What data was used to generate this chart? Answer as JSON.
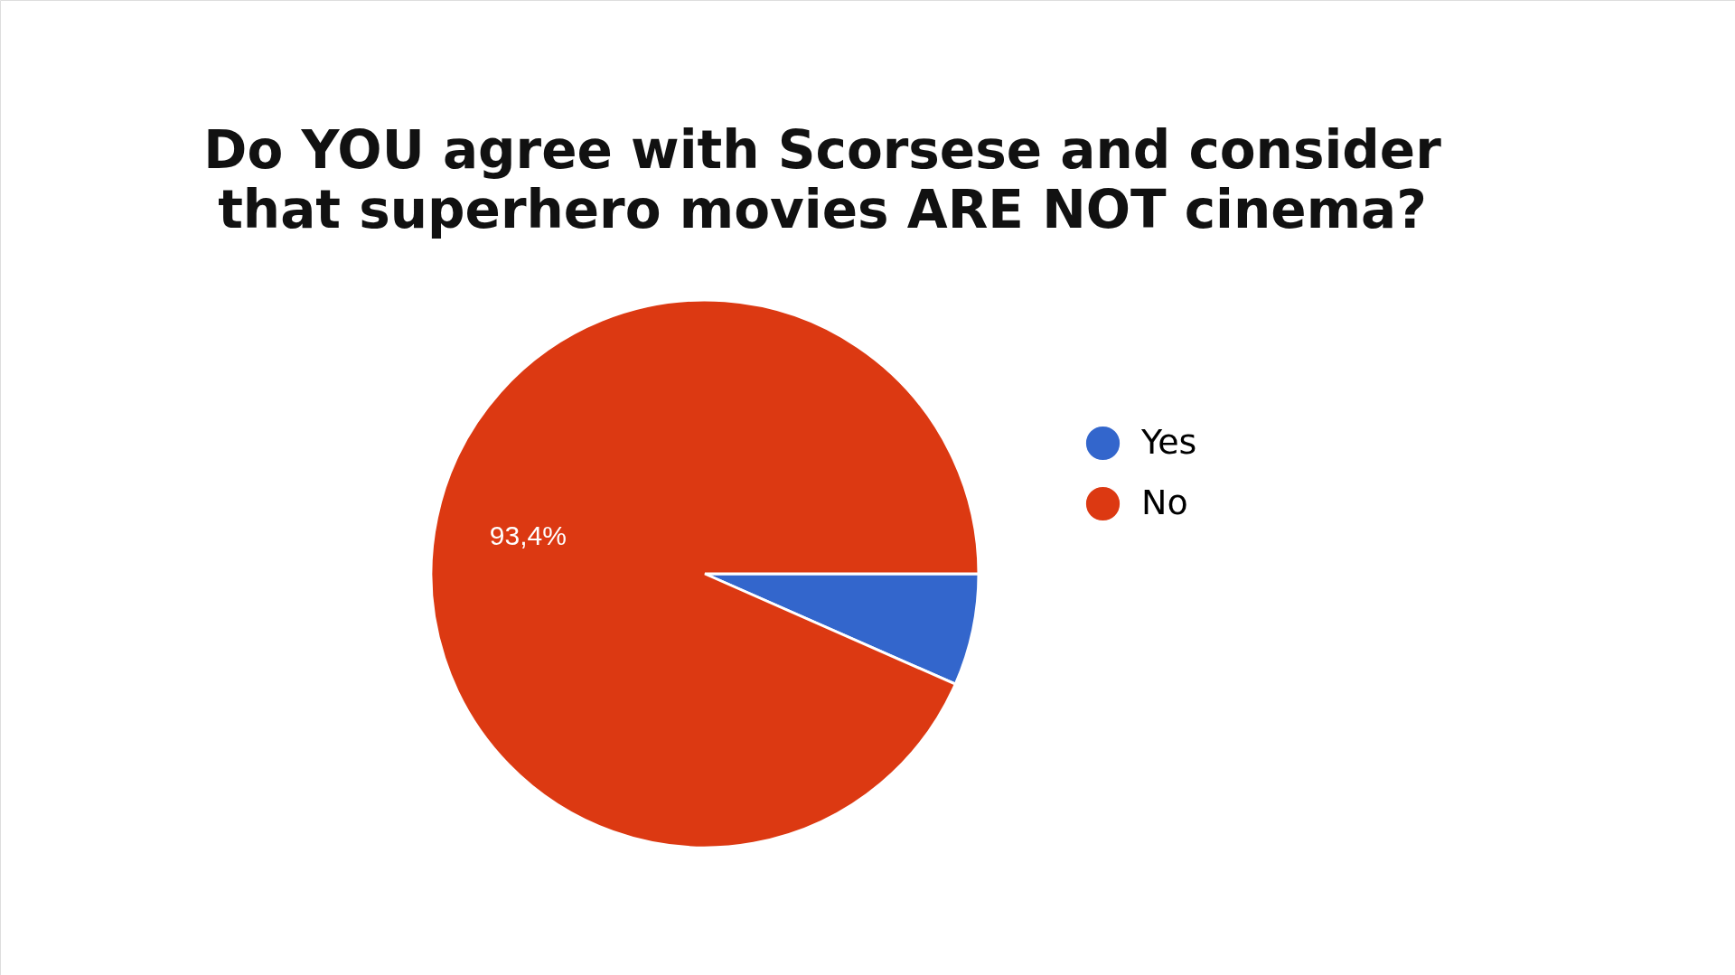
{
  "chart_data": {
    "type": "pie",
    "title": "Do YOU agree with Scorsese and consider\nthat superhero movies ARE NOT cinema?",
    "categories": [
      "Yes",
      "No"
    ],
    "values": [
      6.6,
      93.4
    ],
    "colors": [
      "#3366cc",
      "#dc3912"
    ],
    "value_labels": [
      null,
      "93,4%"
    ],
    "legend": "right"
  }
}
